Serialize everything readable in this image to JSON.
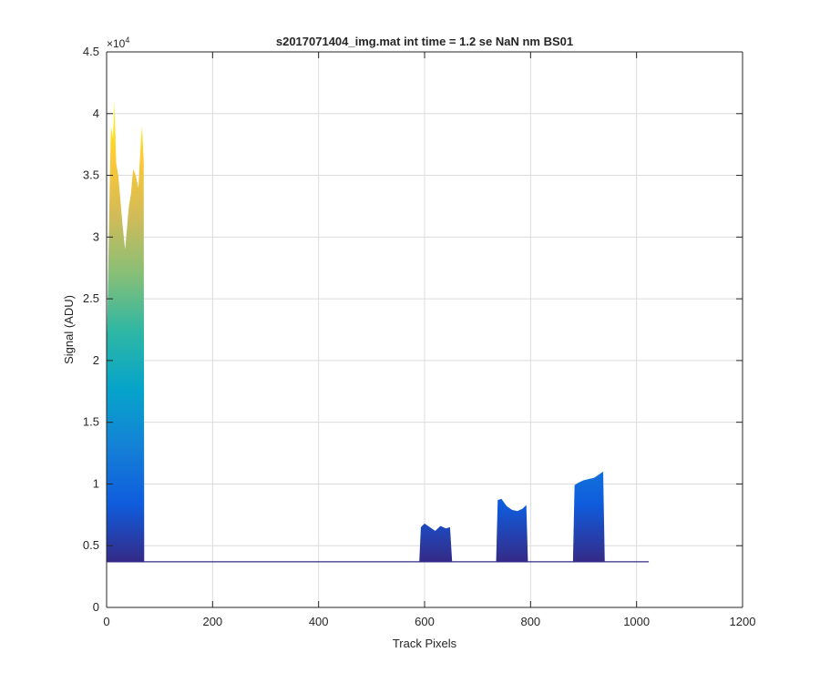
{
  "chart_data": {
    "type": "area",
    "title": "s2017071404_img.mat int time = 1.2 se  NaN nm BS01",
    "xlabel": "Track Pixels",
    "ylabel": "Signal (ADU)",
    "xlim": [
      0,
      1200
    ],
    "ylim": [
      0,
      45000
    ],
    "x_ticks": [
      0,
      200,
      400,
      600,
      800,
      1000,
      1200
    ],
    "x_tick_labels": [
      "0",
      "200",
      "400",
      "600",
      "800",
      "1000",
      "1200"
    ],
    "y_ticks": [
      0,
      5000,
      10000,
      15000,
      20000,
      25000,
      30000,
      35000,
      40000,
      45000
    ],
    "y_tick_labels": [
      "0",
      "0.5",
      "1",
      "1.5",
      "2",
      "2.5",
      "3",
      "3.5",
      "4",
      "4.5"
    ],
    "y_exponent_label": "×10",
    "y_exponent_power": "4",
    "grid": true,
    "colormap": "parula",
    "baseline": 3700,
    "series": [
      {
        "values": [
          [
            0,
            20000
          ],
          [
            5,
            32000
          ],
          [
            8,
            39000
          ],
          [
            12,
            38000
          ],
          [
            15,
            41000
          ],
          [
            18,
            36000
          ],
          [
            22,
            35000
          ],
          [
            26,
            33000
          ],
          [
            30,
            31000
          ],
          [
            35,
            29000
          ],
          [
            38,
            30500
          ],
          [
            42,
            32500
          ],
          [
            46,
            33500
          ],
          [
            50,
            35500
          ],
          [
            55,
            35000
          ],
          [
            60,
            34000
          ],
          [
            65,
            38000
          ],
          [
            67,
            39000
          ],
          [
            70,
            36000
          ],
          [
            71,
            3700
          ],
          [
            1023,
            3700
          ]
        ]
      },
      {
        "values": [
          [
            590,
            3700
          ],
          [
            593,
            6500
          ],
          [
            600,
            6800
          ],
          [
            610,
            6500
          ],
          [
            620,
            6200
          ],
          [
            630,
            6600
          ],
          [
            640,
            6400
          ],
          [
            648,
            6500
          ],
          [
            652,
            3700
          ]
        ]
      },
      {
        "values": [
          [
            735,
            3700
          ],
          [
            738,
            8700
          ],
          [
            745,
            8800
          ],
          [
            755,
            8200
          ],
          [
            765,
            7900
          ],
          [
            775,
            7800
          ],
          [
            785,
            8000
          ],
          [
            792,
            8300
          ],
          [
            795,
            3700
          ]
        ]
      },
      {
        "values": [
          [
            880,
            3700
          ],
          [
            883,
            9900
          ],
          [
            890,
            10100
          ],
          [
            900,
            10300
          ],
          [
            910,
            10400
          ],
          [
            920,
            10500
          ],
          [
            930,
            10800
          ],
          [
            937,
            11000
          ],
          [
            940,
            3700
          ]
        ]
      }
    ]
  },
  "colors": {
    "axis": "#262626",
    "grid": "#dcdcdc",
    "baseline_line": "#352a87",
    "parula_stops": [
      "#352a87",
      "#0f5cdd",
      "#1481d6",
      "#06a4ca",
      "#2eb7a4",
      "#87bf77",
      "#d1bb59",
      "#fec832",
      "#f9fb0e"
    ]
  }
}
